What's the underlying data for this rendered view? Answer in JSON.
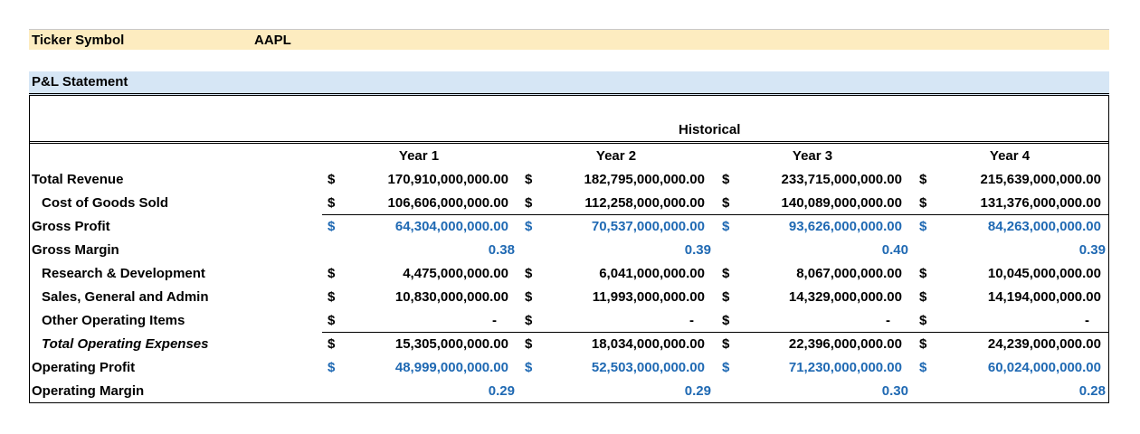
{
  "ticker": {
    "label": "Ticker Symbol",
    "value": "AAPL"
  },
  "section_title": "P&L Statement",
  "historical_label": "Historical",
  "years": [
    "Year 1",
    "Year 2",
    "Year 3",
    "Year 4"
  ],
  "currency_symbol": "$",
  "rows": [
    {
      "label": "Total Revenue",
      "values": [
        "170,910,000,000.00",
        "182,795,000,000.00",
        "233,715,000,000.00",
        "215,639,000,000.00"
      ]
    },
    {
      "label": "Cost of Goods Sold",
      "values": [
        "106,606,000,000.00",
        "112,258,000,000.00",
        "140,089,000,000.00",
        "131,376,000,000.00"
      ]
    },
    {
      "label": "Gross Profit",
      "values": [
        "64,304,000,000.00",
        "70,537,000,000.00",
        "93,626,000,000.00",
        "84,263,000,000.00"
      ]
    },
    {
      "label": "Gross Margin",
      "values": [
        "0.38",
        "0.39",
        "0.40",
        "0.39"
      ]
    },
    {
      "label": "Research & Development",
      "values": [
        "4,475,000,000.00",
        "6,041,000,000.00",
        "8,067,000,000.00",
        "10,045,000,000.00"
      ]
    },
    {
      "label": "Sales, General and Admin",
      "values": [
        "10,830,000,000.00",
        "11,993,000,000.00",
        "14,329,000,000.00",
        "14,194,000,000.00"
      ]
    },
    {
      "label": "Other Operating Items",
      "values": [
        "-",
        "-",
        "-",
        "-"
      ]
    },
    {
      "label": "Total Operating Expenses",
      "values": [
        "15,305,000,000.00",
        "18,034,000,000.00",
        "22,396,000,000.00",
        "24,239,000,000.00"
      ]
    },
    {
      "label": "Operating Profit",
      "values": [
        "48,999,000,000.00",
        "52,503,000,000.00",
        "71,230,000,000.00",
        "60,024,000,000.00"
      ]
    },
    {
      "label": "Operating Margin",
      "values": [
        "0.29",
        "0.29",
        "0.30",
        "0.28"
      ]
    }
  ],
  "colors": {
    "ticker_bg": "#fdecc0",
    "section_bg": "#d6e6f5",
    "calculated_blue": "#1f69b3"
  }
}
